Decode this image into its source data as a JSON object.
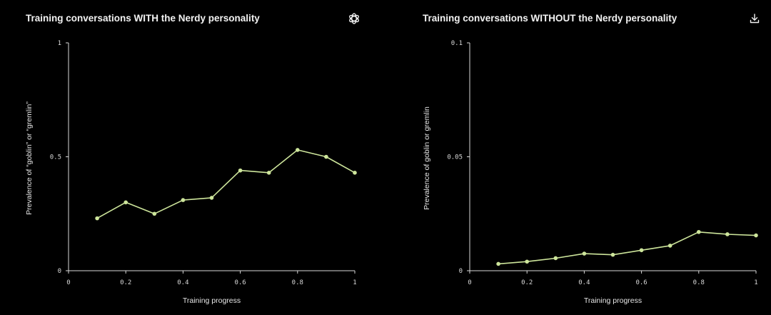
{
  "colors": {
    "background": "#000000",
    "axis": "#d9d9d9",
    "series": "#cde59b",
    "text": "#f2f2f2"
  },
  "icons": {
    "logo": "openai-logo-icon",
    "download": "download-icon"
  },
  "chart_data": [
    {
      "type": "line",
      "title": "Training conversations WITH the Nerdy personality",
      "xlabel": "Training progress",
      "ylabel": "Prevalence of “goblin” or “gremlin”",
      "xlim": [
        0,
        1
      ],
      "ylim": [
        0,
        1
      ],
      "xticks": [
        "0",
        "0.2",
        "0.4",
        "0.6",
        "0.8",
        "1"
      ],
      "yticks": [
        "0",
        "0.5",
        "1"
      ],
      "grid": false,
      "series": [
        {
          "x": [
            0.1,
            0.2,
            0.3,
            0.4,
            0.5,
            0.6,
            0.7,
            0.8,
            0.9,
            1.0
          ],
          "y": [
            0.23,
            0.3,
            0.25,
            0.31,
            0.32,
            0.44,
            0.43,
            0.53,
            0.5,
            0.43
          ]
        }
      ]
    },
    {
      "type": "line",
      "title": "Training conversations WITHOUT the Nerdy personality",
      "xlabel": "Training progress",
      "ylabel": "Prevalence of goblin or gremlin",
      "xlim": [
        0,
        1
      ],
      "ylim": [
        0,
        0.1
      ],
      "xticks": [
        "0",
        "0.2",
        "0.4",
        "0.6",
        "0.8",
        "1"
      ],
      "yticks": [
        "0",
        "0.05",
        "0.1"
      ],
      "grid": false,
      "series": [
        {
          "x": [
            0.1,
            0.2,
            0.3,
            0.4,
            0.5,
            0.6,
            0.7,
            0.8,
            0.9,
            1.0
          ],
          "y": [
            0.003,
            0.004,
            0.0055,
            0.0075,
            0.007,
            0.009,
            0.011,
            0.017,
            0.016,
            0.0155
          ]
        }
      ]
    }
  ]
}
